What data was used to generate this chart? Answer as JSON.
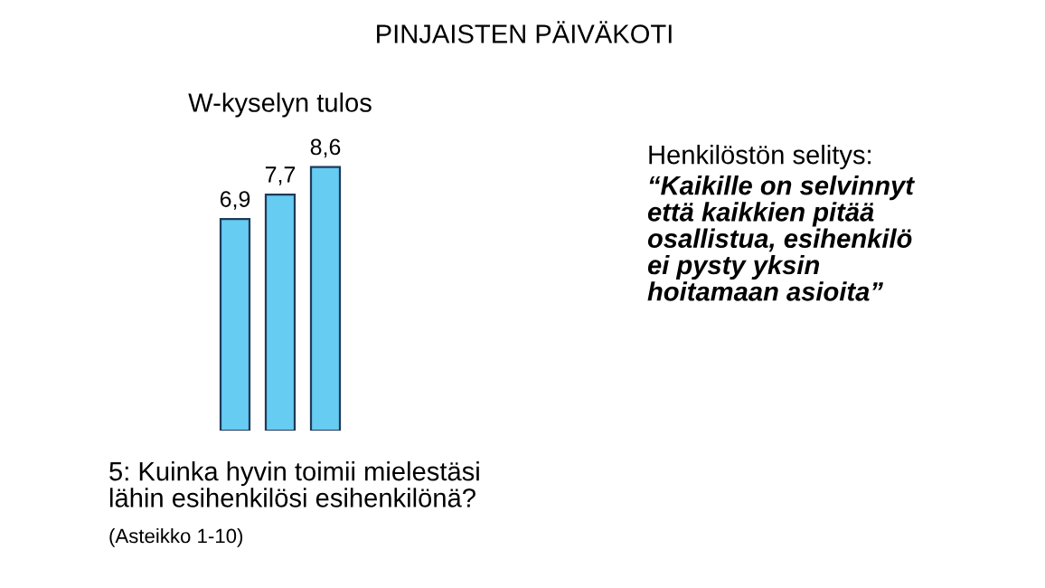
{
  "chart_data": {
    "type": "bar",
    "title": "PINJAISTEN PÄIVÄKOTI",
    "subtitle": "W-kyselyn tulos",
    "categories": [
      null,
      null,
      null
    ],
    "values": [
      6.9,
      7.7,
      8.6
    ],
    "value_labels": [
      "6,9",
      "7,7",
      "8,6"
    ],
    "color": "#66ccf2",
    "grid": false,
    "annotations": [
      "Henkilöstön selitys:",
      "“Kaikille on selvinnyt\nettä kaikkien pitää\nosallistua, esihenkilö\nei pysty yksin\nhoitamaan asioita”",
      "5: Kuinka hyvin toimii mielestäsi\nlähin esihenkilösi esihenkilönä?",
      "(Asteikko 1-10)"
    ]
  }
}
